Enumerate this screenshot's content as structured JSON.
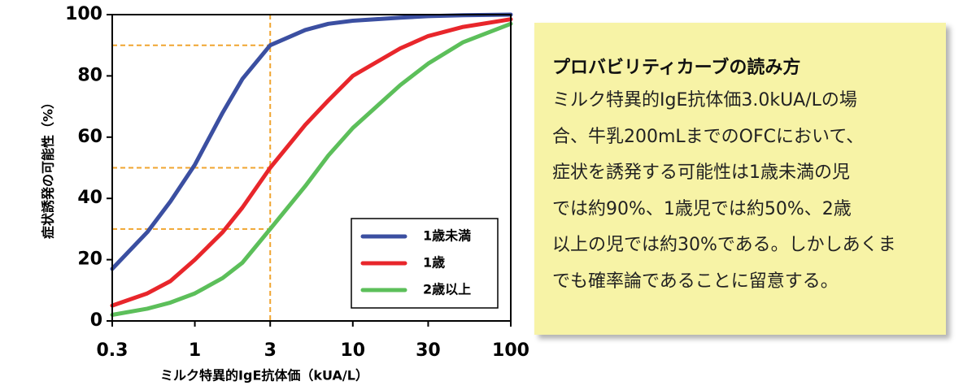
{
  "chart_data": {
    "type": "line",
    "xlabel": "ミルク特異的IgE抗体価（kUA/L）",
    "ylabel": "症状誘発の可能性（%）",
    "log_x": true,
    "x": [
      0.3,
      0.5,
      0.7,
      1,
      1.5,
      2,
      3,
      5,
      7,
      10,
      20,
      30,
      50,
      100
    ],
    "series": [
      {
        "name": "1歳未満",
        "color": "#3b4fa1",
        "values": [
          17,
          29,
          39,
          51,
          68,
          79,
          90,
          95,
          97,
          98,
          99,
          99.5,
          99.8,
          100
        ]
      },
      {
        "name": "1歳",
        "color": "#e8262b",
        "values": [
          5,
          9,
          13,
          20,
          29,
          37,
          50,
          64,
          72,
          80,
          89,
          93,
          96,
          98.5
        ]
      },
      {
        "name": "2歳以上",
        "color": "#5cbf5a",
        "values": [
          2,
          4,
          6,
          9,
          14,
          19,
          30,
          44,
          54,
          63,
          77,
          84,
          91,
          97
        ]
      }
    ],
    "xlim": [
      0.3,
      100
    ],
    "xticks": [
      0.3,
      1,
      3,
      10,
      30,
      100
    ],
    "ylim": [
      0,
      100
    ],
    "yticks": [
      0,
      20,
      40,
      60,
      80,
      100
    ],
    "guides": [
      {
        "x": 3,
        "y": 90
      },
      {
        "x": 3,
        "y": 50
      },
      {
        "x": 3,
        "y": 30
      }
    ],
    "guide_color": "#f0a530",
    "legend": "lower right"
  },
  "note": {
    "title": "プロバビリティカーブの読み方",
    "lines": [
      "ミルク特異的IgE抗体価3.0kUA/Lの場",
      "合、牛乳200mLまでのOFCにおいて、",
      "症状を誘発する可能性は1歳未満の児",
      "では約90%、1歳児では約50%、2歳",
      "以上の児では約30%である。しかしあくま",
      "でも確率論であることに留意する。"
    ]
  }
}
